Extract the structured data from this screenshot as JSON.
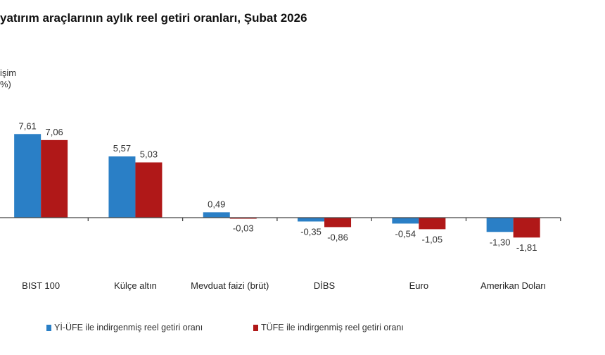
{
  "chart_data": {
    "type": "bar",
    "title": "yatırım araçlarının aylık reel getiri oranları, Şubat 2026",
    "ylabel_lines": [
      "işim",
      "%)"
    ],
    "categories": [
      "BIST 100",
      "Külçe altın",
      "Mevduat faizi (brüt)",
      "DİBS",
      "Euro",
      "Amerikan Doları"
    ],
    "series": [
      {
        "name": "Yİ-ÜFE ile indirgenmiş reel getiri oranı",
        "color": "#2a7fc6",
        "values": [
          7.61,
          5.57,
          0.49,
          -0.35,
          -0.54,
          -1.3
        ],
        "labels": [
          "7,61",
          "5,57",
          "0,49",
          "-0,35",
          "-0,54",
          "-1,30"
        ]
      },
      {
        "name": "TÜFE ile indirgenmiş reel getiri oranı",
        "color": "#b01818",
        "values": [
          7.06,
          5.03,
          -0.03,
          -0.86,
          -1.05,
          -1.81
        ],
        "labels": [
          "7,06",
          "5,03",
          "-0,03",
          "-0,86",
          "-1,05",
          "-1,81"
        ]
      }
    ],
    "grid": false,
    "legend_position": "bottom"
  }
}
